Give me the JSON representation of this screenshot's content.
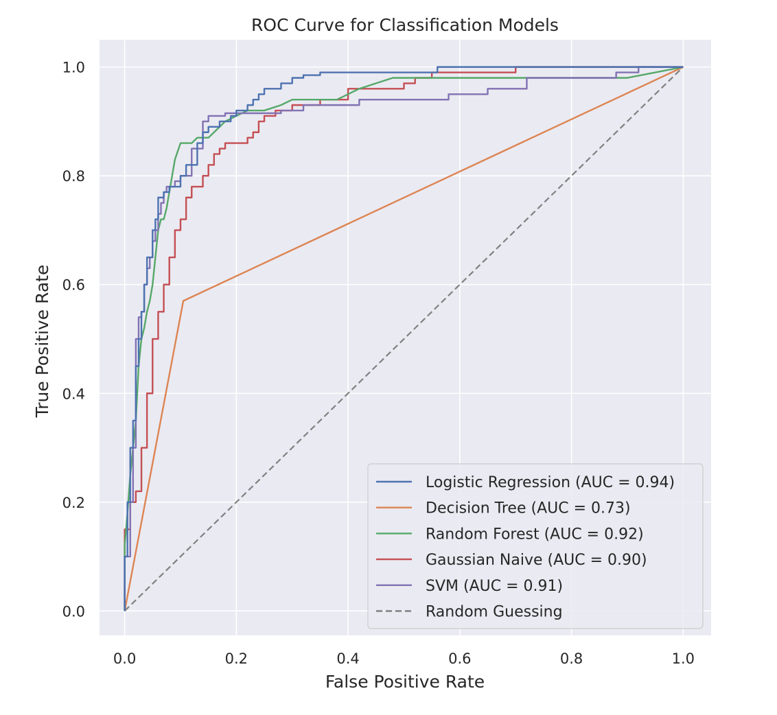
{
  "chart_data": {
    "type": "line",
    "title": "ROC Curve for Classification Models",
    "xlabel": "False Positive Rate",
    "ylabel": "True Positive Rate",
    "xlim": [
      -0.045,
      1.05
    ],
    "ylim": [
      -0.045,
      1.05
    ],
    "xticks": [
      0.0,
      0.2,
      0.4,
      0.6,
      0.8,
      1.0
    ],
    "yticks": [
      0.0,
      0.2,
      0.4,
      0.6,
      0.8,
      1.0
    ],
    "xtick_labels": [
      "0.0",
      "0.2",
      "0.4",
      "0.6",
      "0.8",
      "1.0"
    ],
    "ytick_labels": [
      "0.0",
      "0.2",
      "0.4",
      "0.6",
      "0.8",
      "1.0"
    ],
    "grid": true,
    "legend_position": "lower-right",
    "series": [
      {
        "name": "Logistic Regression (AUC = 0.94)",
        "color": "#4c72b0",
        "dash": "solid",
        "x": [
          0,
          0.0,
          0.005,
          0.005,
          0.01,
          0.01,
          0.015,
          0.015,
          0.02,
          0.02,
          0.025,
          0.025,
          0.03,
          0.03,
          0.035,
          0.035,
          0.04,
          0.04,
          0.05,
          0.05,
          0.055,
          0.055,
          0.06,
          0.06,
          0.07,
          0.07,
          0.08,
          0.08,
          0.1,
          0.1,
          0.11,
          0.11,
          0.13,
          0.13,
          0.14,
          0.14,
          0.15,
          0.15,
          0.17,
          0.17,
          0.19,
          0.19,
          0.2,
          0.2,
          0.22,
          0.22,
          0.23,
          0.23,
          0.24,
          0.24,
          0.25,
          0.25,
          0.28,
          0.28,
          0.3,
          0.3,
          0.32,
          0.32,
          0.35,
          0.35,
          0.38,
          0.38,
          0.56,
          0.56,
          0.7,
          0.7,
          1.0
        ],
        "y": [
          0,
          0.1,
          0.1,
          0.2,
          0.2,
          0.3,
          0.3,
          0.35,
          0.35,
          0.45,
          0.45,
          0.5,
          0.5,
          0.55,
          0.55,
          0.6,
          0.6,
          0.65,
          0.65,
          0.7,
          0.7,
          0.72,
          0.72,
          0.76,
          0.76,
          0.77,
          0.77,
          0.78,
          0.78,
          0.8,
          0.8,
          0.82,
          0.82,
          0.86,
          0.86,
          0.88,
          0.88,
          0.89,
          0.89,
          0.9,
          0.9,
          0.91,
          0.91,
          0.92,
          0.92,
          0.93,
          0.93,
          0.94,
          0.94,
          0.95,
          0.95,
          0.96,
          0.96,
          0.97,
          0.97,
          0.98,
          0.98,
          0.985,
          0.985,
          0.99,
          0.99,
          0.99,
          0.99,
          1.0,
          1.0,
          1.0,
          1.0
        ]
      },
      {
        "name": "Decision Tree (AUC = 0.73)",
        "color": "#dd8452",
        "dash": "solid",
        "x": [
          0,
          0.105,
          1.0
        ],
        "y": [
          0,
          0.57,
          1.0
        ]
      },
      {
        "name": "Random Forest (AUC = 0.92)",
        "color": "#55a868",
        "dash": "solid",
        "x": [
          0,
          0.0,
          0.005,
          0.01,
          0.015,
          0.02,
          0.025,
          0.03,
          0.035,
          0.04,
          0.045,
          0.05,
          0.055,
          0.06,
          0.065,
          0.07,
          0.075,
          0.08,
          0.085,
          0.09,
          0.1,
          0.11,
          0.12,
          0.13,
          0.14,
          0.15,
          0.16,
          0.17,
          0.18,
          0.2,
          0.22,
          0.25,
          0.28,
          0.3,
          0.32,
          0.35,
          0.38,
          0.4,
          0.42,
          0.45,
          0.48,
          0.5,
          0.55,
          0.6,
          0.65,
          0.7,
          0.75,
          0.8,
          0.85,
          0.9,
          0.95,
          1.0
        ],
        "y": [
          0,
          0.12,
          0.18,
          0.25,
          0.3,
          0.35,
          0.45,
          0.5,
          0.52,
          0.55,
          0.57,
          0.6,
          0.65,
          0.7,
          0.72,
          0.72,
          0.74,
          0.77,
          0.8,
          0.83,
          0.86,
          0.86,
          0.86,
          0.87,
          0.87,
          0.87,
          0.88,
          0.89,
          0.9,
          0.91,
          0.92,
          0.92,
          0.93,
          0.94,
          0.94,
          0.94,
          0.94,
          0.95,
          0.96,
          0.97,
          0.98,
          0.98,
          0.98,
          0.98,
          0.98,
          0.98,
          0.98,
          0.98,
          0.98,
          0.98,
          0.99,
          1.0
        ]
      },
      {
        "name": "Gaussian Naive (AUC = 0.90)",
        "color": "#c44e52",
        "dash": "solid",
        "x": [
          0,
          0.0,
          0.01,
          0.01,
          0.02,
          0.02,
          0.03,
          0.03,
          0.04,
          0.04,
          0.05,
          0.05,
          0.06,
          0.06,
          0.07,
          0.07,
          0.08,
          0.08,
          0.09,
          0.09,
          0.1,
          0.1,
          0.11,
          0.11,
          0.12,
          0.12,
          0.13,
          0.13,
          0.14,
          0.14,
          0.15,
          0.15,
          0.16,
          0.16,
          0.17,
          0.17,
          0.18,
          0.18,
          0.2,
          0.2,
          0.22,
          0.22,
          0.23,
          0.23,
          0.24,
          0.24,
          0.25,
          0.25,
          0.27,
          0.27,
          0.3,
          0.3,
          0.35,
          0.35,
          0.4,
          0.4,
          0.45,
          0.45,
          0.5,
          0.5,
          0.52,
          0.52,
          0.55,
          0.55,
          0.6,
          0.6,
          0.7,
          0.7,
          1.0
        ],
        "y": [
          0,
          0.15,
          0.15,
          0.2,
          0.2,
          0.22,
          0.22,
          0.3,
          0.3,
          0.4,
          0.4,
          0.5,
          0.5,
          0.55,
          0.55,
          0.6,
          0.6,
          0.65,
          0.65,
          0.7,
          0.7,
          0.72,
          0.72,
          0.76,
          0.76,
          0.78,
          0.78,
          0.78,
          0.78,
          0.8,
          0.8,
          0.82,
          0.82,
          0.84,
          0.84,
          0.85,
          0.85,
          0.86,
          0.86,
          0.86,
          0.86,
          0.87,
          0.87,
          0.88,
          0.88,
          0.9,
          0.9,
          0.91,
          0.91,
          0.92,
          0.92,
          0.93,
          0.93,
          0.94,
          0.94,
          0.96,
          0.96,
          0.96,
          0.96,
          0.97,
          0.97,
          0.98,
          0.98,
          0.99,
          0.99,
          0.99,
          0.99,
          1.0,
          1.0
        ]
      },
      {
        "name": "SVM (AUC = 0.91)",
        "color": "#8172b3",
        "dash": "solid",
        "x": [
          0,
          0.0,
          0.01,
          0.01,
          0.015,
          0.015,
          0.02,
          0.02,
          0.025,
          0.025,
          0.03,
          0.03,
          0.035,
          0.035,
          0.04,
          0.04,
          0.045,
          0.045,
          0.05,
          0.05,
          0.055,
          0.055,
          0.06,
          0.06,
          0.065,
          0.065,
          0.07,
          0.07,
          0.075,
          0.075,
          0.08,
          0.08,
          0.09,
          0.09,
          0.1,
          0.1,
          0.12,
          0.12,
          0.14,
          0.14,
          0.15,
          0.15,
          0.16,
          0.16,
          0.18,
          0.18,
          0.22,
          0.22,
          0.28,
          0.28,
          0.32,
          0.32,
          0.42,
          0.42,
          0.58,
          0.58,
          0.65,
          0.65,
          0.72,
          0.72,
          0.88,
          0.88,
          0.92,
          0.92,
          1.0
        ],
        "y": [
          0,
          0.1,
          0.1,
          0.2,
          0.2,
          0.3,
          0.3,
          0.5,
          0.5,
          0.54,
          0.54,
          0.55,
          0.55,
          0.6,
          0.6,
          0.63,
          0.63,
          0.65,
          0.65,
          0.68,
          0.68,
          0.7,
          0.7,
          0.73,
          0.73,
          0.75,
          0.75,
          0.77,
          0.77,
          0.78,
          0.78,
          0.78,
          0.78,
          0.79,
          0.79,
          0.8,
          0.8,
          0.85,
          0.85,
          0.9,
          0.9,
          0.91,
          0.91,
          0.91,
          0.91,
          0.915,
          0.915,
          0.915,
          0.915,
          0.92,
          0.92,
          0.93,
          0.93,
          0.94,
          0.94,
          0.95,
          0.95,
          0.96,
          0.96,
          0.98,
          0.98,
          0.99,
          0.99,
          1.0,
          1.0
        ]
      },
      {
        "name": "Random Guessing",
        "color": "#808080",
        "dash": "dashed",
        "x": [
          0,
          1
        ],
        "y": [
          0,
          1
        ]
      }
    ]
  }
}
